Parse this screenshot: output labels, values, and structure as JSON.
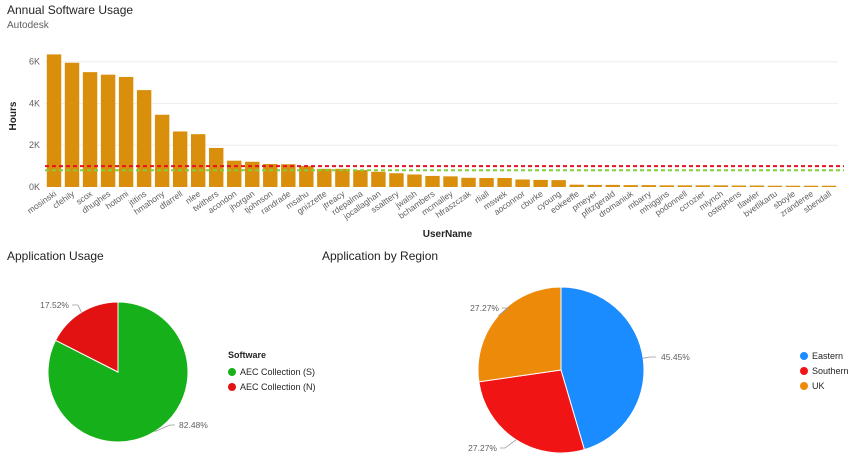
{
  "page": {
    "bar_title": "Annual Software Usage",
    "bar_subtitle": "Autodesk",
    "app_title": "Application Usage",
    "region_title": "Application by Region",
    "legend_title_software": "Software"
  },
  "chart_data": [
    {
      "type": "bar",
      "title": "Annual Software Usage",
      "subtitle": "Autodesk",
      "xlabel": "UserName",
      "ylabel": "Hours",
      "ylim": [
        0,
        6800
      ],
      "yticks": [
        0,
        2000,
        4000,
        6000
      ],
      "ytick_labels": [
        "0K",
        "2K",
        "4K",
        "6K"
      ],
      "bar_color": "#D98F0B",
      "reference_lines": [
        {
          "value": 1000,
          "color": "#E81123",
          "style": "dashed"
        },
        {
          "value": 800,
          "color": "#7FD13B",
          "style": "dashed"
        }
      ],
      "categories": [
        "mosinski",
        "cfehily",
        "scox",
        "dhughes",
        "hotomi",
        "jtitins",
        "hmahony",
        "dfarrell",
        "nlee",
        "twithers",
        "acondon",
        "jhorgan",
        "tjohnson",
        "randrade",
        "msahu",
        "gnizzette",
        "jtreacy",
        "rdepalma",
        "jocallaghan",
        "ssalttery",
        "jwalsh",
        "bchambers",
        "mcmalley",
        "hfraszczak",
        "rliall",
        "mswek",
        "aoconnor",
        "cburke",
        "cyoung",
        "eokeeffe",
        "pmeyer",
        "pfitzgerald",
        "dromaniuk",
        "mbarry",
        "mhiggins",
        "podonnell",
        "ccrozier",
        "mlynch",
        "ostephens",
        "tlawler",
        "bvetlikartu",
        "sboyle",
        "zranderee",
        "sbendall"
      ],
      "values": [
        6350,
        5950,
        5500,
        5380,
        5270,
        4640,
        3460,
        2660,
        2530,
        1870,
        1260,
        1210,
        1100,
        1090,
        1000,
        870,
        870,
        810,
        730,
        660,
        600,
        530,
        510,
        440,
        430,
        430,
        360,
        340,
        330,
        110,
        100,
        100,
        90,
        90,
        80,
        80,
        80,
        80,
        70,
        70,
        60,
        60,
        60,
        60
      ]
    },
    {
      "type": "pie",
      "title": "Application Usage",
      "legend_title": "Software",
      "slices": [
        {
          "label": "AEC Collection (S)",
          "value": 82.48,
          "value_label": "82.48%",
          "color": "#15B01A"
        },
        {
          "label": "AEC Collection (N)",
          "value": 17.52,
          "value_label": "17.52%",
          "color": "#E21212"
        }
      ]
    },
    {
      "type": "pie",
      "title": "Application by Region",
      "slices": [
        {
          "label": "Eastern",
          "value": 45.45,
          "value_label": "45.45%",
          "color": "#1A8CFF"
        },
        {
          "label": "Southern",
          "value": 27.27,
          "value_label": "27.27%",
          "color": "#F01414"
        },
        {
          "label": "UK",
          "value": 27.27,
          "value_label": "27.27%",
          "color": "#EE8A0A"
        }
      ]
    }
  ]
}
